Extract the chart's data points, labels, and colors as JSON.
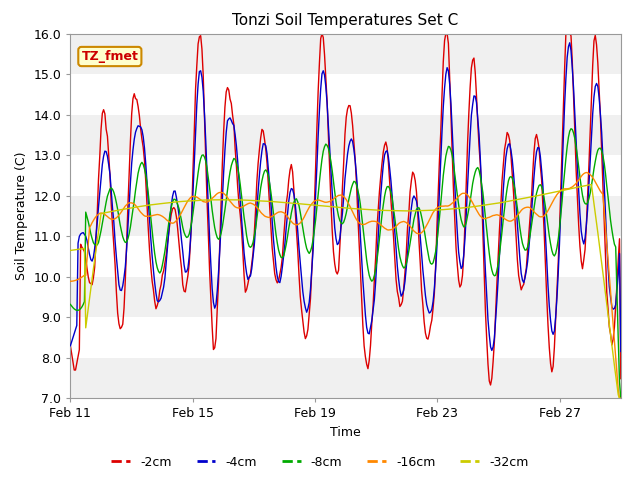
{
  "title": "Tonzi Soil Temperatures Set C",
  "xlabel": "Time",
  "ylabel": "Soil Temperature (C)",
  "ylim": [
    7.0,
    16.0
  ],
  "yticks": [
    7.0,
    8.0,
    9.0,
    10.0,
    11.0,
    12.0,
    13.0,
    14.0,
    15.0,
    16.0
  ],
  "xtick_labels": [
    "Feb 11",
    "Feb 15",
    "Feb 19",
    "Feb 23",
    "Feb 27"
  ],
  "legend_labels": [
    "-2cm",
    "-4cm",
    "-8cm",
    "-16cm",
    "-32cm"
  ],
  "line_colors": [
    "#dd0000",
    "#0000cc",
    "#00aa00",
    "#ff8800",
    "#cccc00"
  ],
  "annotation_text": "TZ_fmet",
  "annotation_bg": "#ffffcc",
  "annotation_border": "#cc8800",
  "n_days": 18,
  "title_fontsize": 11,
  "axis_label_fontsize": 9,
  "tick_fontsize": 9
}
